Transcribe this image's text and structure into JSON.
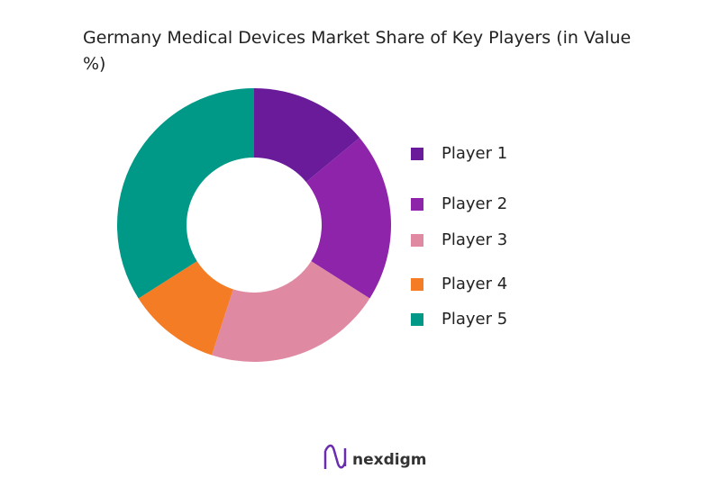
{
  "chart_data": {
    "type": "pie",
    "title": "Germany Medical Devices Market Share of Key Players (in Value %)",
    "categories": [
      "Player 1",
      "Player 2",
      "Player 3",
      "Player 4",
      "Player 5"
    ],
    "values": [
      14,
      20,
      21,
      11,
      34
    ],
    "colors": [
      "#6a1b9a",
      "#8e24aa",
      "#df8aa2",
      "#f47c24",
      "#009887"
    ],
    "donut": true,
    "legend": "right"
  },
  "logo": "nexdigm"
}
